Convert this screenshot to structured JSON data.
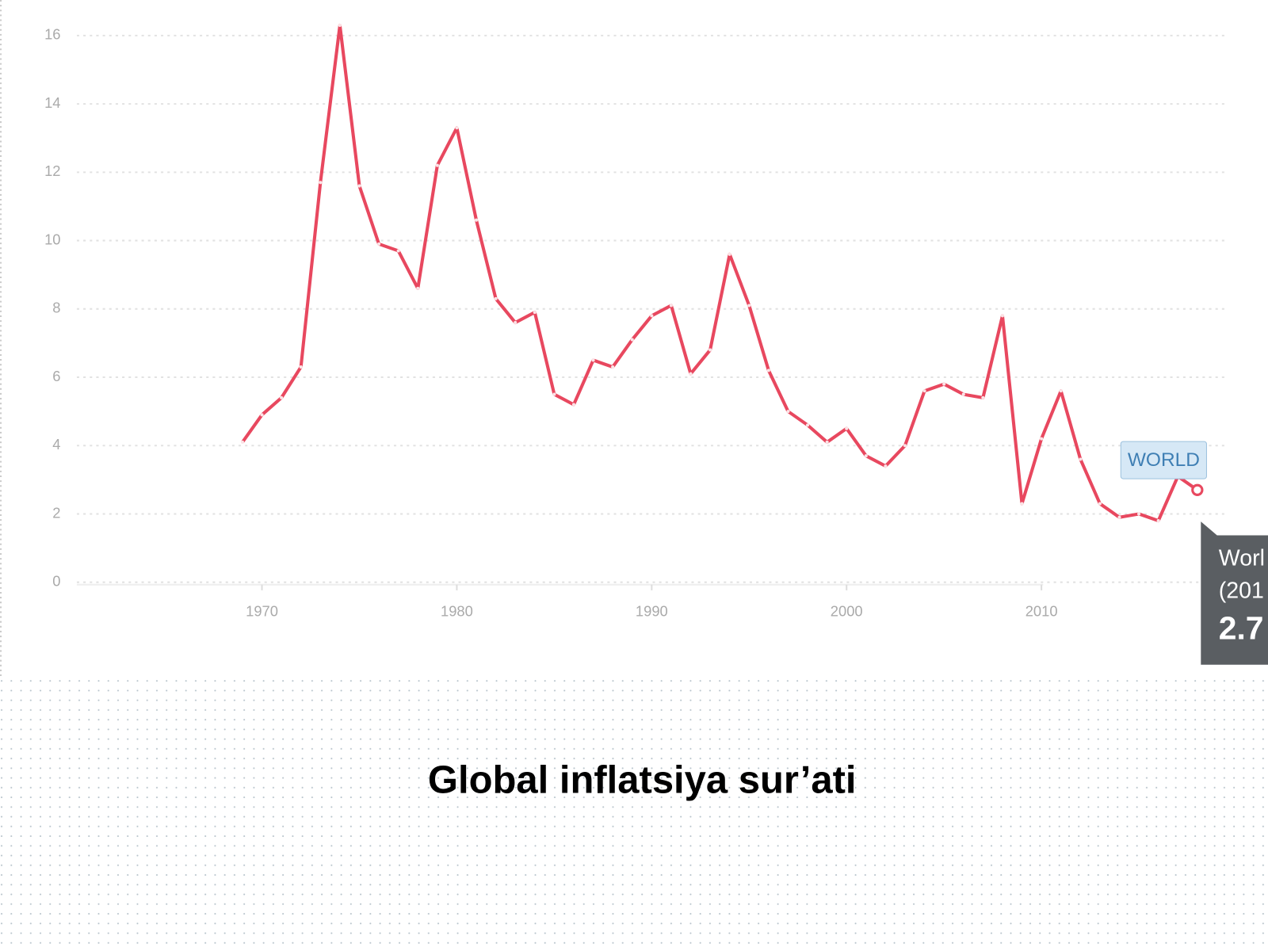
{
  "chart_data": {
    "type": "line",
    "title": "Global inflatsiya sur’ati",
    "x": [
      1969,
      1970,
      1971,
      1972,
      1973,
      1974,
      1975,
      1976,
      1977,
      1978,
      1979,
      1980,
      1981,
      1982,
      1983,
      1984,
      1985,
      1986,
      1987,
      1988,
      1989,
      1990,
      1991,
      1992,
      1993,
      1994,
      1995,
      1996,
      1997,
      1998,
      1999,
      2000,
      2001,
      2002,
      2003,
      2004,
      2005,
      2006,
      2007,
      2008,
      2009,
      2010,
      2011,
      2012,
      2013,
      2014,
      2015,
      2016,
      2017,
      2018
    ],
    "series": [
      {
        "name": "WORLD",
        "color": "#e8485f",
        "values": [
          4.1,
          4.9,
          5.4,
          6.3,
          11.7,
          16.3,
          11.6,
          9.9,
          9.7,
          8.6,
          12.2,
          13.3,
          10.6,
          8.3,
          7.6,
          7.9,
          5.5,
          5.2,
          6.5,
          6.3,
          7.1,
          7.8,
          8.1,
          6.1,
          6.8,
          9.6,
          8.1,
          6.2,
          5.0,
          4.6,
          4.1,
          4.5,
          3.7,
          3.4,
          4.0,
          5.6,
          5.8,
          5.5,
          5.4,
          7.8,
          2.3,
          4.2,
          5.6,
          3.6,
          2.3,
          1.9,
          2.0,
          1.8,
          3.1,
          2.7
        ]
      }
    ],
    "xlim": [
      1960.5,
      2019.8
    ],
    "xticks": [
      1970,
      1980,
      1990,
      2000,
      2010
    ],
    "ylim": [
      0,
      16
    ],
    "yticks": [
      0,
      2,
      4,
      6,
      8,
      10,
      12,
      14,
      16
    ],
    "grid": true,
    "tooltip": [
      "Worl",
      "(201",
      "2.7"
    ]
  }
}
